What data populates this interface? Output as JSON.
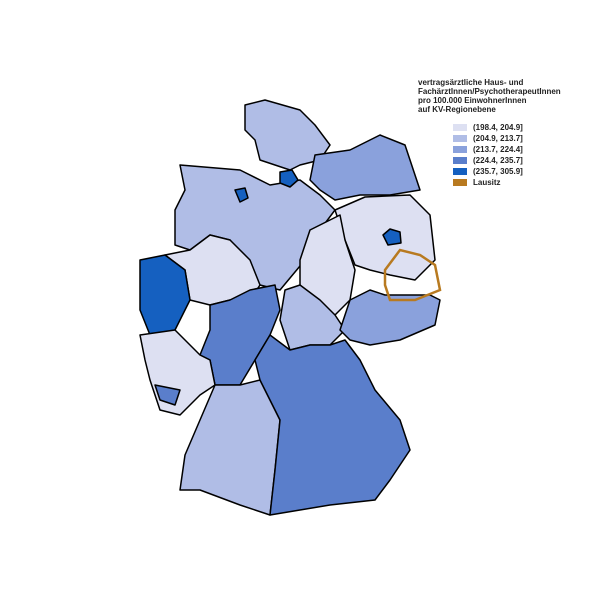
{
  "legend": {
    "title": [
      "vertragsärztliche Haus- und",
      "FachärztInnen/PsychotherapeutInnen",
      "pro 100.000 EinwohnerInnen",
      "auf KV-Regionebene"
    ],
    "items": [
      {
        "label": "(198.4, 204.9]",
        "color": "#dde0f2"
      },
      {
        "label": "(204.9, 213.7]",
        "color": "#b0bde6"
      },
      {
        "label": "(213.7, 224.4]",
        "color": "#8aa1dc"
      },
      {
        "label": "(224.4, 235.7]",
        "color": "#5a7ecb"
      },
      {
        "label": "(235.7, 305.9]",
        "color": "#1560c0"
      },
      {
        "label": "Lausitz",
        "color": "#b87a20"
      }
    ]
  }
}
